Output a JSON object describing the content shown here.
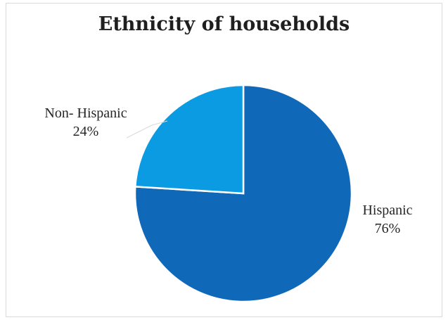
{
  "chart_data": {
    "type": "pie",
    "title": "Ethnicity of households",
    "slices": [
      {
        "label": "Hispanic",
        "value": 76,
        "value_label": "76%",
        "color": "#1068b8"
      },
      {
        "label": "Non- Hispanic",
        "value": 24,
        "value_label": "24%",
        "color": "#0b9be3"
      }
    ],
    "start_angle_deg": 0,
    "direction": "clockwise",
    "slice_border_color": "#ffffff",
    "leader_line_color": "#d9d9d9",
    "legend": "none"
  }
}
